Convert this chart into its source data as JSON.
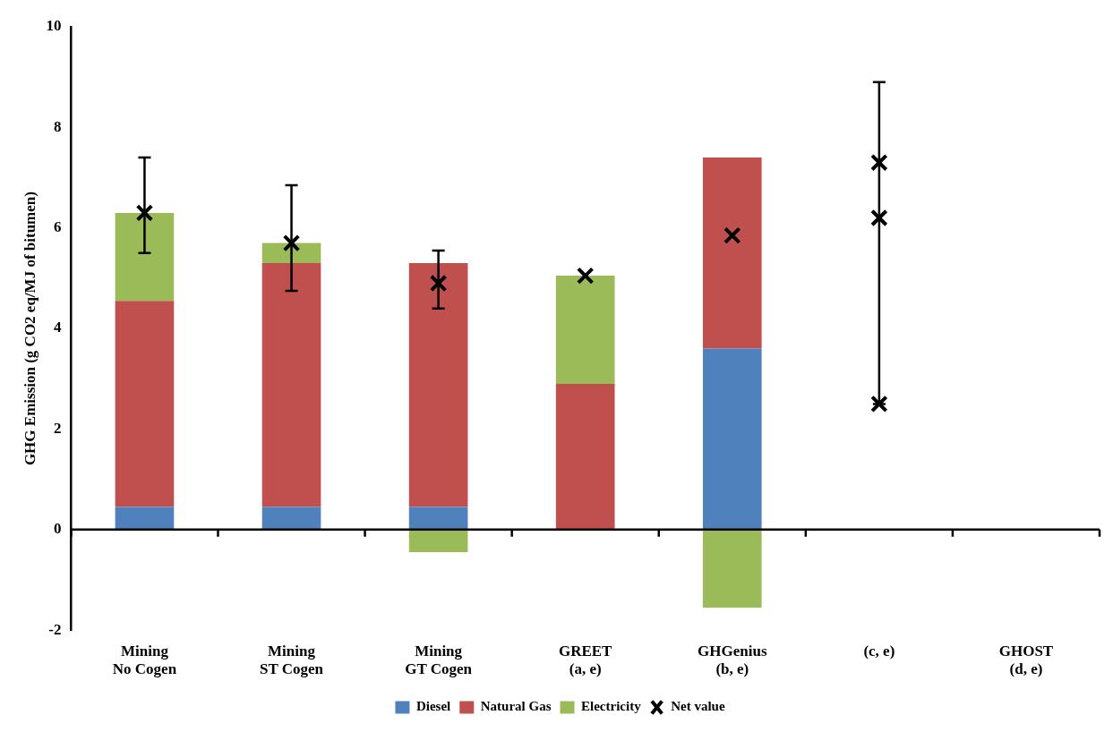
{
  "chart_data": {
    "type": "bar",
    "stacked": true,
    "ylabel": "GHG Emission (g CO2 eq/MJ of bitumen)",
    "categories": [
      "Mining\nNo Cogen",
      "Mining\nST Cogen",
      "Mining\nGT Cogen",
      "GREET\n(a, e)",
      "GHGenius\n(b, e)",
      "(c, e)",
      "GHOST\n(d, e)"
    ],
    "series": [
      {
        "name": "Diesel",
        "color": "#4f81bd",
        "values": [
          0.45,
          0.45,
          0.45,
          null,
          3.6,
          null,
          null
        ]
      },
      {
        "name": "Natural Gas",
        "color": "#c0504d",
        "values": [
          4.1,
          4.85,
          4.85,
          2.9,
          3.8,
          null,
          null
        ]
      },
      {
        "name": "Electricity",
        "color": "#9bbb59",
        "values": [
          1.75,
          0.4,
          -0.45,
          2.15,
          -1.55,
          null,
          null
        ]
      },
      {
        "name": "Net value",
        "type": "scatter",
        "color": "#000000",
        "marker": "cross",
        "x": [
          "Mining\nNo Cogen",
          "Mining\nST Cogen",
          "Mining\nGT Cogen",
          "GREET\n(a, e)",
          "GHGenius\n(b, e)",
          "(c, e)",
          "(c, e)",
          "(c, e)"
        ],
        "values": [
          6.3,
          5.7,
          4.9,
          5.05,
          5.85,
          7.3,
          6.2,
          2.5
        ],
        "errors": [
          [
            5.5,
            7.4
          ],
          [
            4.75,
            6.85
          ],
          [
            4.4,
            5.55
          ],
          null,
          null,
          null,
          [
            2.5,
            8.9
          ],
          null
        ]
      }
    ],
    "ylim": [
      -2,
      10
    ],
    "yticks": [
      -2,
      0,
      2,
      4,
      6,
      8,
      10
    ],
    "grid": false,
    "ref_lines": [
      {
        "axis": "y",
        "value": 0,
        "color": "#000000"
      }
    ],
    "legend": "bottom"
  }
}
